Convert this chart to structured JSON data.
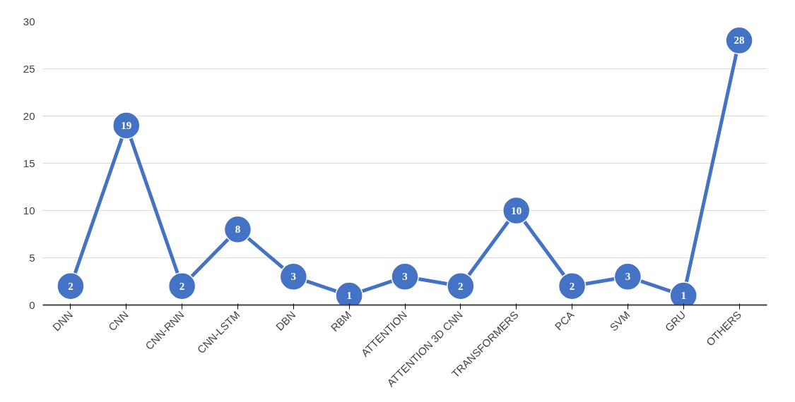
{
  "chart_data": {
    "type": "line",
    "categories": [
      "DNN",
      "CNN",
      "CNN-RNN",
      "CNN-LSTM",
      "DBN",
      "RBM",
      "ATTENTION",
      "ATTENTION 3D CNN",
      "TRANSFORMERS",
      "PCA",
      "SVM",
      "GRU",
      "OTHERS"
    ],
    "series": [
      {
        "color": "#4472c4",
        "values": [
          2,
          19,
          2,
          8,
          3,
          1,
          3,
          2,
          10,
          2,
          3,
          1,
          28
        ]
      }
    ],
    "ylim": [
      0,
      30
    ],
    "yticks": [
      0,
      5,
      10,
      15,
      20,
      25,
      30
    ],
    "grid": "y",
    "marker": "circle",
    "line_style": "solid",
    "data_labels": true
  }
}
